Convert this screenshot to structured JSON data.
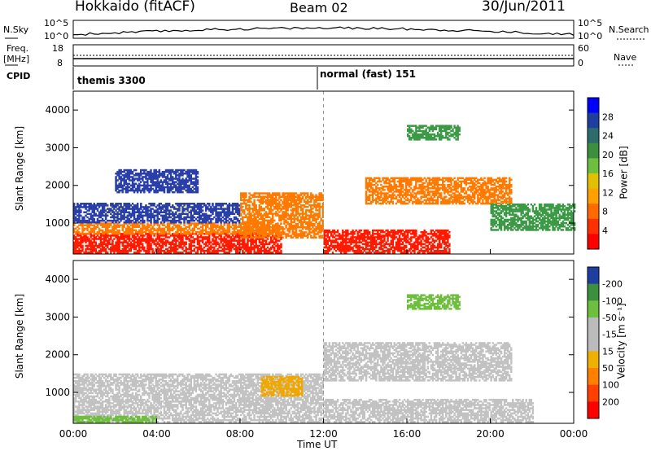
{
  "header": {
    "station": "Hokkaido (fitACF)",
    "beam": "Beam 02",
    "date": "30/Jun/2011"
  },
  "colors": {
    "power_scale": [
      "#0000ff",
      "#1e3f9f",
      "#2e6b6b",
      "#3c8f3c",
      "#6fbf3f",
      "#e0c000",
      "#ffa000",
      "#ff6a00",
      "#ff3000",
      "#ff0000"
    ],
    "velocity_scale": [
      "#1e3f9f",
      "#3c8f3c",
      "#6fbf3f",
      "#bbbbbb",
      "#bbbbbb",
      "#f0b000",
      "#ff8000",
      "#ff4000",
      "#ff0000"
    ],
    "ground_scatter": "#bbbbbb"
  },
  "summary": {
    "nsky_label": "N.Sky",
    "nsky_ticks": [
      "10^5",
      "10^0"
    ],
    "nsearch_label": "N.Search",
    "freq_label": "Freq.",
    "freq_unit": "[MHz]",
    "freq_ticks": [
      "18",
      "8"
    ],
    "nave_label": "Nave",
    "nave_ticks": [
      "60",
      "0"
    ],
    "cpid_label": "CPID",
    "cpid_segments": [
      "themis 3300",
      "normal (fast) 151"
    ]
  },
  "chart_data": [
    {
      "type": "heatmap",
      "panel": "power",
      "ylabel": "Slant Range [km]",
      "yticks": [
        "1000",
        "2000",
        "3000",
        "4000"
      ],
      "ylim": [
        180,
        4500
      ],
      "xlim": [
        0,
        24
      ],
      "colorbar_label": "Power [dB]",
      "colorbar_ticks": [
        "4",
        "8",
        "12",
        "16",
        "20",
        "24",
        "28"
      ],
      "scatter_regions": [
        {
          "t0": 0,
          "t1": 10,
          "r0": 200,
          "r1": 700,
          "level": "red"
        },
        {
          "t0": 0,
          "t1": 10,
          "r0": 700,
          "r1": 1000,
          "level": "orange"
        },
        {
          "t0": 0,
          "t1": 8,
          "r0": 1000,
          "r1": 1500,
          "level": "blue"
        },
        {
          "t0": 2,
          "t1": 6,
          "r0": 1800,
          "r1": 2400,
          "level": "blue"
        },
        {
          "t0": 8,
          "t1": 12,
          "r0": 600,
          "r1": 1800,
          "level": "orange"
        },
        {
          "t0": 12,
          "t1": 18,
          "r0": 200,
          "r1": 800,
          "level": "red"
        },
        {
          "t0": 14,
          "t1": 21,
          "r0": 1500,
          "r1": 2200,
          "level": "orange"
        },
        {
          "t0": 16,
          "t1": 18.5,
          "r0": 3200,
          "r1": 3600,
          "level": "green"
        },
        {
          "t0": 20,
          "t1": 24,
          "r0": 800,
          "r1": 1500,
          "level": "green"
        }
      ]
    },
    {
      "type": "heatmap",
      "panel": "velocity",
      "ylabel": "Slant Range [km]",
      "yticks": [
        "1000",
        "2000",
        "3000",
        "4000"
      ],
      "ylim": [
        180,
        4500
      ],
      "xlim": [
        0,
        24
      ],
      "colorbar_label": "Velocity [m s⁻¹]",
      "colorbar_ticks": [
        "200",
        "100",
        "50",
        "15",
        "-15",
        "-50",
        "-100",
        "-200"
      ],
      "scatter_regions": [
        {
          "t0": 0,
          "t1": 12,
          "r0": 200,
          "r1": 1500,
          "level": "grey"
        },
        {
          "t0": 12,
          "t1": 22,
          "r0": 200,
          "r1": 800,
          "level": "grey"
        },
        {
          "t0": 12,
          "t1": 21,
          "r0": 1300,
          "r1": 2300,
          "level": "grey"
        },
        {
          "t0": 16,
          "t1": 18.5,
          "r0": 3200,
          "r1": 3600,
          "level": "green"
        },
        {
          "t0": 9,
          "t1": 11,
          "r0": 900,
          "r1": 1400,
          "level": "orange"
        },
        {
          "t0": 0,
          "t1": 4,
          "r0": 200,
          "r1": 350,
          "level": "green"
        }
      ]
    }
  ],
  "xaxis": {
    "ticks": [
      "00:00",
      "04:00",
      "08:00",
      "12:00",
      "16:00",
      "20:00",
      "00:00"
    ],
    "label": "Time UT"
  }
}
